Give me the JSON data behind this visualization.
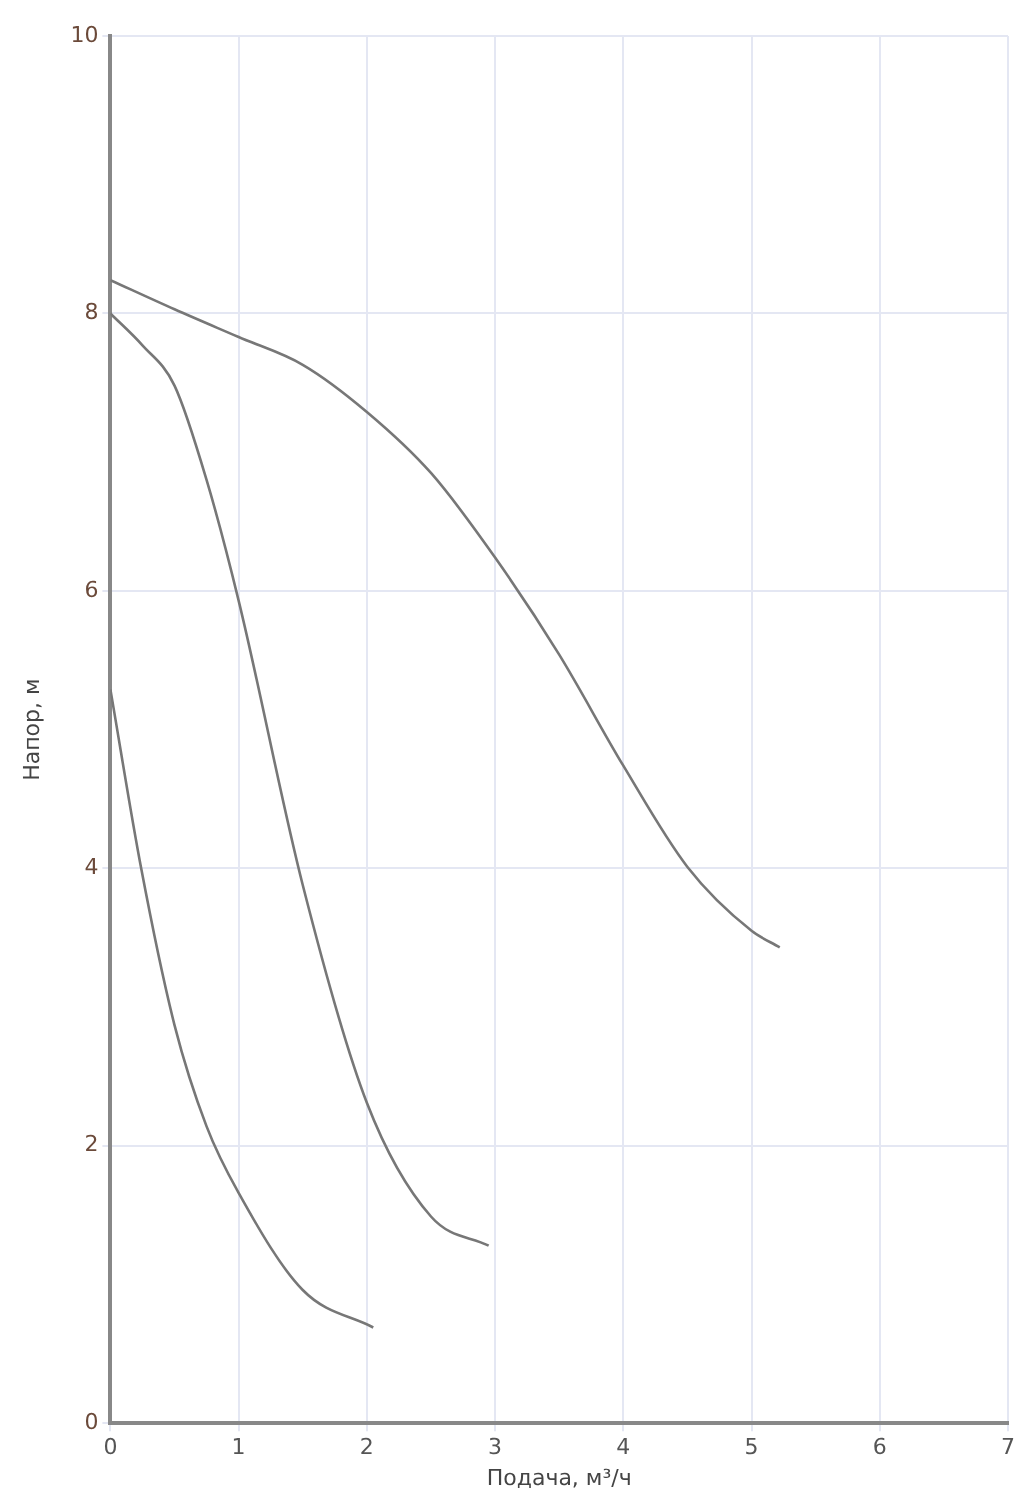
{
  "chart_data": {
    "type": "line",
    "xlabel": "Подача, м³/ч",
    "ylabel": "Напор, м",
    "xlim": [
      0,
      7
    ],
    "xticks": [
      0,
      1,
      2,
      3,
      4,
      5,
      6,
      7
    ],
    "ylim": [
      0,
      10
    ],
    "yticks": [
      0,
      2,
      4,
      6,
      8,
      10
    ],
    "grid": true,
    "legend": false,
    "marker": "none",
    "line_style": "solid",
    "series": [
      {
        "color": "#777777",
        "x": [
          0,
          0.5,
          1,
          1.5,
          2,
          2.5,
          3,
          3.5,
          4,
          4.5,
          5,
          5.22
        ],
        "values": [
          8.24,
          8.03,
          7.83,
          7.63,
          7.29,
          6.85,
          6.24,
          5.54,
          4.74,
          4.01,
          3.55,
          3.43
        ]
      },
      {
        "color": "#777777",
        "x": [
          0,
          0.25,
          0.5,
          0.75,
          1,
          1.5,
          2,
          2.5,
          2.95
        ],
        "values": [
          8.0,
          7.77,
          7.48,
          6.8,
          5.93,
          3.88,
          2.31,
          1.49,
          1.28
        ]
      },
      {
        "color": "#777777",
        "x": [
          0,
          0.24,
          0.5,
          0.75,
          1,
          1.5,
          2.05
        ],
        "values": [
          5.29,
          4.0,
          2.87,
          2.14,
          1.66,
          0.96,
          0.69
        ]
      }
    ]
  }
}
